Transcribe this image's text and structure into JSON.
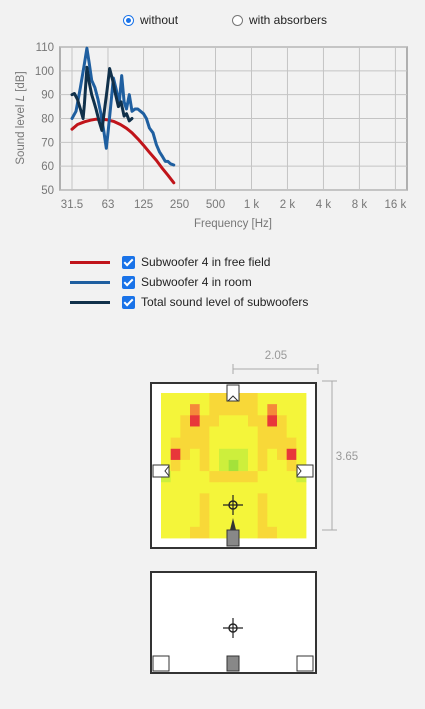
{
  "controls": {
    "option_without": "without",
    "option_with": "with absorbers",
    "selected": "without"
  },
  "chart_data": {
    "type": "line",
    "xlabel": "Frequency [Hz]",
    "ylabel": "Sound level L [dB]",
    "ylabel_prefix": "Sound level ",
    "ylabel_var": "L",
    "ylabel_unit": " [dB]",
    "x_scale": "log",
    "xlim": [
      25,
      20000
    ],
    "ylim": [
      50,
      110
    ],
    "x_ticks": [
      31.5,
      63,
      125,
      250,
      500,
      1000,
      2000,
      4000,
      8000,
      16000
    ],
    "x_tick_labels": [
      "31.5",
      "63",
      "125",
      "250",
      "500",
      "1 k",
      "2 k",
      "4 k",
      "8 k",
      "16 k"
    ],
    "y_ticks": [
      50,
      60,
      70,
      80,
      90,
      100,
      110
    ],
    "y_tick_labels": [
      "50",
      "60",
      "70",
      "80",
      "90",
      "100",
      "110"
    ],
    "grid": true,
    "series": [
      {
        "name": "Subwoofer 4 in free field",
        "color": "#c0141a",
        "x": [
          31.5,
          35,
          40,
          45,
          50,
          56,
          63,
          71,
          80,
          90,
          100,
          112,
          125,
          140,
          160,
          180,
          200,
          224
        ],
        "values": [
          75.5,
          77.5,
          78.6,
          79.3,
          79.7,
          79.7,
          79.4,
          78.7,
          77.5,
          75.9,
          74.0,
          71.5,
          68.8,
          65.8,
          62.4,
          59.0,
          56.2,
          53.0
        ]
      },
      {
        "name": "Subwoofer 4 in room",
        "color": "#1f5fa0",
        "x": [
          31.5,
          34,
          37,
          40,
          42,
          44,
          46,
          49,
          52,
          55,
          58,
          61,
          63,
          66,
          70,
          74,
          78,
          82,
          86,
          90,
          95,
          100,
          106,
          112,
          118,
          125,
          132,
          140,
          150,
          160,
          170,
          180,
          190,
          200,
          210,
          224
        ],
        "values": [
          80,
          83,
          93,
          103,
          109.5,
          103,
          96,
          93,
          88,
          82,
          75,
          67.5,
          74,
          84,
          97,
          92,
          86,
          98,
          87,
          84,
          90,
          83,
          84,
          84,
          83,
          82,
          80,
          76,
          74,
          69,
          66,
          64,
          62,
          62,
          61,
          60.5
        ]
      },
      {
        "name": "Total sound level of subwoofers",
        "color": "#10304a",
        "x": [
          31.5,
          33,
          35,
          37,
          39,
          40,
          42,
          44,
          46,
          48,
          50,
          53,
          56,
          59,
          62,
          65,
          69,
          73,
          77,
          81,
          86,
          90,
          95,
          100
        ],
        "values": [
          90,
          90.5,
          88,
          84,
          80,
          86,
          101.5,
          95,
          90,
          87,
          84,
          79,
          75,
          84,
          92,
          101,
          96,
          90,
          85,
          87,
          81,
          82,
          79,
          80
        ]
      }
    ]
  },
  "room": {
    "width_label": "2.05",
    "depth_label": "3.65",
    "heatmap": [
      [
        2,
        2,
        2,
        2,
        2,
        3,
        3,
        3,
        3,
        3,
        2,
        2,
        2,
        2,
        2
      ],
      [
        2,
        2,
        2,
        4,
        2,
        3,
        3,
        3,
        3,
        3,
        2,
        4,
        2,
        2,
        2
      ],
      [
        2,
        2,
        3,
        5,
        3,
        3,
        2,
        2,
        2,
        3,
        3,
        5,
        3,
        2,
        2
      ],
      [
        2,
        2,
        3,
        3,
        3,
        2,
        2,
        2,
        2,
        2,
        3,
        3,
        3,
        2,
        2
      ],
      [
        2,
        3,
        3,
        3,
        3,
        2,
        2,
        2,
        2,
        2,
        3,
        3,
        3,
        3,
        2
      ],
      [
        2,
        5,
        3,
        2,
        3,
        2,
        1,
        1,
        1,
        2,
        3,
        2,
        3,
        5,
        2
      ],
      [
        2,
        3,
        2,
        2,
        3,
        2,
        1,
        0,
        1,
        2,
        3,
        2,
        2,
        3,
        2
      ],
      [
        1,
        2,
        2,
        2,
        2,
        3,
        3,
        3,
        3,
        3,
        2,
        2,
        2,
        2,
        1
      ],
      [
        2,
        2,
        2,
        2,
        2,
        2,
        2,
        2,
        2,
        2,
        2,
        2,
        2,
        2,
        2
      ],
      [
        2,
        2,
        2,
        2,
        3,
        2,
        2,
        2,
        2,
        2,
        3,
        2,
        2,
        2,
        2
      ],
      [
        2,
        2,
        2,
        2,
        3,
        2,
        2,
        2,
        2,
        2,
        3,
        2,
        2,
        2,
        2
      ],
      [
        2,
        2,
        2,
        2,
        3,
        2,
        2,
        2,
        2,
        2,
        3,
        2,
        2,
        2,
        2
      ],
      [
        2,
        2,
        2,
        3,
        3,
        2,
        2,
        2,
        2,
        2,
        3,
        3,
        2,
        2,
        2
      ]
    ],
    "heat_colors": [
      "#a4e23a",
      "#cdef3c",
      "#f4f53a",
      "#f8d838",
      "#f5893a",
      "#e8373a"
    ]
  }
}
